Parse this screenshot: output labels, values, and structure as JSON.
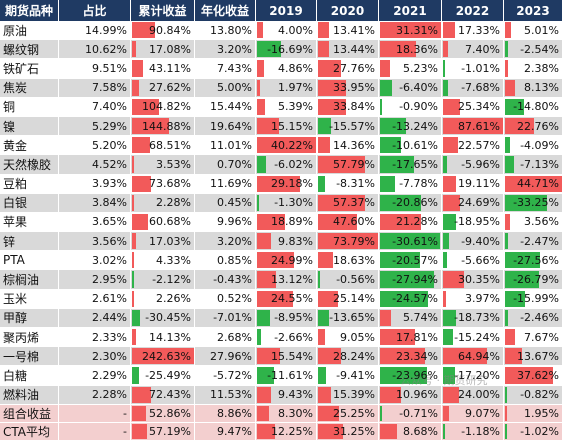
{
  "headers": [
    "期货品种",
    "占比",
    "累计收益",
    "年化收益",
    "2019",
    "2020",
    "2021",
    "2022",
    "2023"
  ],
  "colors": {
    "header_bg": "#1f3a63",
    "pos_bar": "#f25a5a",
    "neg_bar": "#2fb34a",
    "row_alt": "#d9d9d9",
    "summary_bg": "#f3cfcf"
  },
  "rows": [
    {
      "name": "原油",
      "share": "14.99%",
      "cum": "90.84%",
      "ann": "13.80%",
      "y2019": "4.00%",
      "y2020": "13.41%",
      "y2021": "31.31%",
      "y2022": "17.33%",
      "y2023": "5.01%"
    },
    {
      "name": "螺纹钢",
      "share": "10.62%",
      "cum": "17.08%",
      "ann": "3.20%",
      "y2019": "-16.69%",
      "y2020": "13.44%",
      "y2021": "18.36%",
      "y2022": "7.40%",
      "y2023": "-2.54%"
    },
    {
      "name": "铁矿石",
      "share": "9.51%",
      "cum": "43.11%",
      "ann": "7.43%",
      "y2019": "4.86%",
      "y2020": "27.76%",
      "y2021": "5.23%",
      "y2022": "-1.01%",
      "y2023": "2.38%"
    },
    {
      "name": "焦炭",
      "share": "7.58%",
      "cum": "27.62%",
      "ann": "5.00%",
      "y2019": "1.97%",
      "y2020": "33.95%",
      "y2021": "-6.40%",
      "y2022": "-7.68%",
      "y2023": "8.13%"
    },
    {
      "name": "铜",
      "share": "7.40%",
      "cum": "104.82%",
      "ann": "15.44%",
      "y2019": "5.39%",
      "y2020": "33.84%",
      "y2021": "-0.90%",
      "y2022": "25.34%",
      "y2023": "-14.80%"
    },
    {
      "name": "镍",
      "share": "5.29%",
      "cum": "144.88%",
      "ann": "19.64%",
      "y2019": "15.15%",
      "y2020": "-15.57%",
      "y2021": "-13.24%",
      "y2022": "87.61%",
      "y2023": "22.76%"
    },
    {
      "name": "黄金",
      "share": "5.20%",
      "cum": "68.51%",
      "ann": "11.01%",
      "y2019": "40.22%",
      "y2020": "14.36%",
      "y2021": "-10.61%",
      "y2022": "22.57%",
      "y2023": "-4.09%"
    },
    {
      "name": "天然橡胶",
      "share": "4.52%",
      "cum": "3.53%",
      "ann": "0.70%",
      "y2019": "-6.02%",
      "y2020": "57.79%",
      "y2021": "-17.65%",
      "y2022": "-5.96%",
      "y2023": "-7.13%"
    },
    {
      "name": "豆粕",
      "share": "3.93%",
      "cum": "73.68%",
      "ann": "11.69%",
      "y2019": "29.18%",
      "y2020": "-8.31%",
      "y2021": "-7.78%",
      "y2022": "19.11%",
      "y2023": "44.71%"
    },
    {
      "name": "白银",
      "share": "3.84%",
      "cum": "2.28%",
      "ann": "0.45%",
      "y2019": "-1.30%",
      "y2020": "57.37%",
      "y2021": "-20.86%",
      "y2022": "24.69%",
      "y2023": "-33.25%"
    },
    {
      "name": "苹果",
      "share": "3.65%",
      "cum": "60.68%",
      "ann": "9.96%",
      "y2019": "18.89%",
      "y2020": "47.60%",
      "y2021": "21.28%",
      "y2022": "-18.95%",
      "y2023": "3.56%"
    },
    {
      "name": "锌",
      "share": "3.56%",
      "cum": "17.03%",
      "ann": "3.20%",
      "y2019": "9.83%",
      "y2020": "73.79%",
      "y2021": "-30.61%",
      "y2022": "-9.40%",
      "y2023": "-2.47%"
    },
    {
      "name": "PTA",
      "share": "3.02%",
      "cum": "4.33%",
      "ann": "0.85%",
      "y2019": "24.99%",
      "y2020": "18.63%",
      "y2021": "-20.57%",
      "y2022": "-5.66%",
      "y2023": "-27.56%"
    },
    {
      "name": "棕榈油",
      "share": "2.95%",
      "cum": "-2.12%",
      "ann": "-0.43%",
      "y2019": "13.12%",
      "y2020": "-0.56%",
      "y2021": "-27.94%",
      "y2022": "30.35%",
      "y2023": "-26.79%"
    },
    {
      "name": "玉米",
      "share": "2.61%",
      "cum": "2.26%",
      "ann": "0.52%",
      "y2019": "24.55%",
      "y2020": "25.14%",
      "y2021": "-24.57%",
      "y2022": "3.97%",
      "y2023": "-15.99%"
    },
    {
      "name": "甲醇",
      "share": "2.44%",
      "cum": "-30.45%",
      "ann": "-7.01%",
      "y2019": "-8.95%",
      "y2020": "-13.65%",
      "y2021": "5.74%",
      "y2022": "-18.73%",
      "y2023": "-2.46%"
    },
    {
      "name": "聚丙烯",
      "share": "2.33%",
      "cum": "14.13%",
      "ann": "2.68%",
      "y2019": "-2.66%",
      "y2020": "9.05%",
      "y2021": "17.81%",
      "y2022": "-15.24%",
      "y2023": "7.67%"
    },
    {
      "name": "一号棉",
      "share": "2.30%",
      "cum": "242.63%",
      "ann": "27.96%",
      "y2019": "15.54%",
      "y2020": "28.24%",
      "y2021": "23.34%",
      "y2022": "64.94%",
      "y2023": "13.67%"
    },
    {
      "name": "白糖",
      "share": "2.29%",
      "cum": "-25.49%",
      "ann": "-5.72%",
      "y2019": "-11.61%",
      "y2020": "-9.41%",
      "y2021": "-23.96%",
      "y2022": "-17.20%",
      "y2023": "37.62%"
    },
    {
      "name": "燃料油",
      "share": "2.28%",
      "cum": "72.43%",
      "ann": "11.53%",
      "y2019": "9.43%",
      "y2020": "15.39%",
      "y2021": "10.96%",
      "y2022": "24.00%",
      "y2023": "-0.82%"
    },
    {
      "name": "组合收益",
      "share": "-",
      "cum": "52.86%",
      "ann": "8.86%",
      "y2019": "8.30%",
      "y2020": "25.25%",
      "y2021": "-0.71%",
      "y2022": "9.07%",
      "y2023": "1.95%"
    },
    {
      "name": "CTA平均",
      "share": "-",
      "cum": "57.19%",
      "ann": "9.47%",
      "y2019": "12.25%",
      "y2020": "31.25%",
      "y2021": "8.68%",
      "y2022": "-1.18%",
      "y2023": "-1.02%"
    }
  ],
  "watermark": "公众号 · 期货研究"
}
